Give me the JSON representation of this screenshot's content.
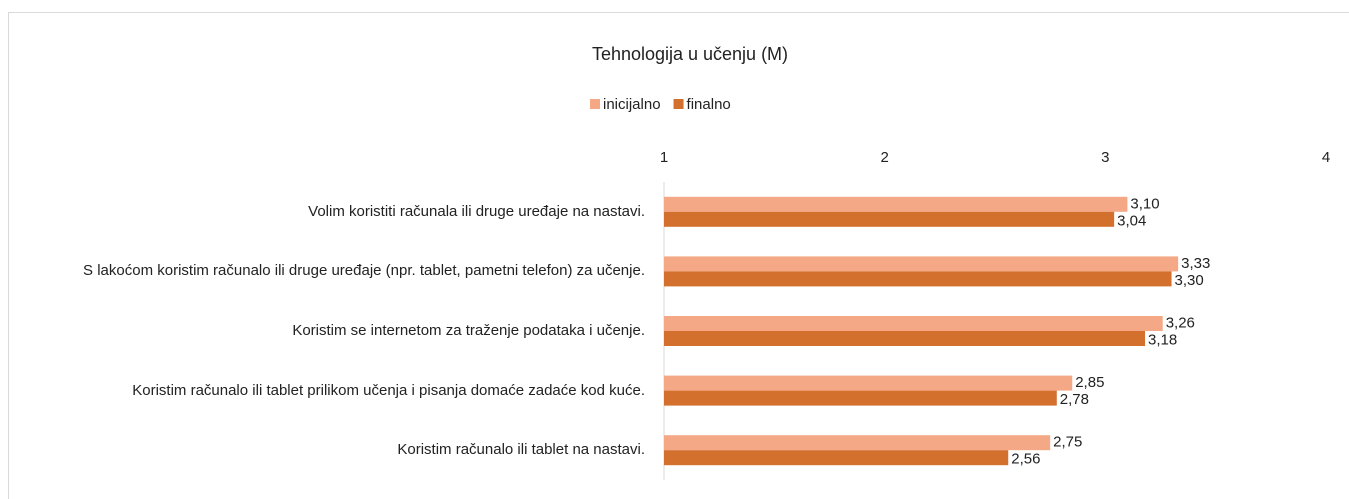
{
  "chart_data": {
    "type": "bar",
    "orientation": "horizontal",
    "title": "Tehnologija u učenju (M)",
    "categories": [
      "Volim koristiti računala ili druge uređaje na nastavi.",
      "S lakoćom koristim računalo ili druge uređaje (npr. tablet, pametni telefon) za učenje.",
      "Koristim se internetom za traženje podataka i učenje.",
      "Koristim računalo ili tablet prilikom učenja i pisanja domaće zadaće kod kuće.",
      "Koristim računalo ili tablet na nastavi."
    ],
    "series": [
      {
        "name": "inicijalno",
        "color": "#f4a886",
        "values": [
          3.1,
          3.33,
          3.26,
          2.85,
          2.75
        ],
        "value_labels": [
          "3,10",
          "3,33",
          "3,26",
          "2,85",
          "2,75"
        ]
      },
      {
        "name": "finalno",
        "color": "#d3702e",
        "values": [
          3.04,
          3.3,
          3.18,
          2.78,
          2.56
        ],
        "value_labels": [
          "3,04",
          "3,30",
          "3,18",
          "2,78",
          "2,56"
        ]
      }
    ],
    "xlim": [
      1,
      4
    ],
    "xticks": [
      1,
      2,
      3,
      4
    ],
    "legend": "top"
  }
}
